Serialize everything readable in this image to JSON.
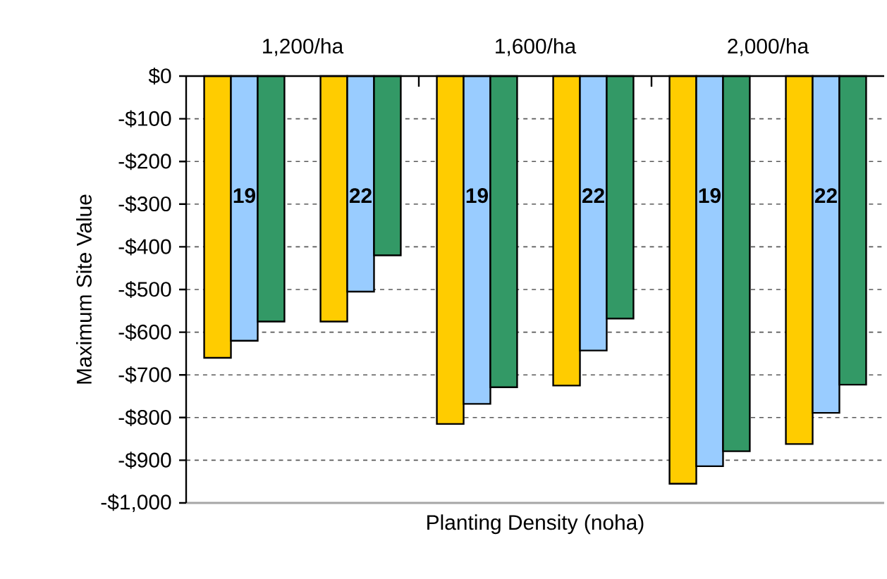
{
  "chart_data": {
    "type": "bar",
    "ylabel": "Maximum Site Value",
    "xlabel": "Planting Density (noha)",
    "annotations": [
      "1,200/ha",
      "1,600/ha",
      "2,000/ha"
    ],
    "categories": [
      "19",
      "22",
      "19",
      "22",
      "19",
      "22"
    ],
    "series": [
      {
        "color": "#ffcc00",
        "values": [
          -660,
          -575,
          -815,
          -725,
          -955,
          -862
        ]
      },
      {
        "color": "#99ccff",
        "values": [
          -620,
          -505,
          -768,
          -643,
          -914,
          -789
        ]
      },
      {
        "color": "#339966",
        "values": [
          -575,
          -420,
          -729,
          -568,
          -879,
          -723
        ]
      }
    ],
    "ylim": [
      -1000,
      0
    ],
    "yticks": [
      {
        "value": 0,
        "label": "$0"
      },
      {
        "value": -100,
        "label": "-$100"
      },
      {
        "value": -200,
        "label": "-$200"
      },
      {
        "value": -300,
        "label": "-$300"
      },
      {
        "value": -400,
        "label": "-$400"
      },
      {
        "value": -500,
        "label": "-$500"
      },
      {
        "value": -600,
        "label": "-$600"
      },
      {
        "value": -700,
        "label": "-$700"
      },
      {
        "value": -800,
        "label": "-$800"
      },
      {
        "value": -900,
        "label": "-$900"
      },
      {
        "value": -1000,
        "label": "-$1,000"
      }
    ],
    "grid": "y"
  }
}
